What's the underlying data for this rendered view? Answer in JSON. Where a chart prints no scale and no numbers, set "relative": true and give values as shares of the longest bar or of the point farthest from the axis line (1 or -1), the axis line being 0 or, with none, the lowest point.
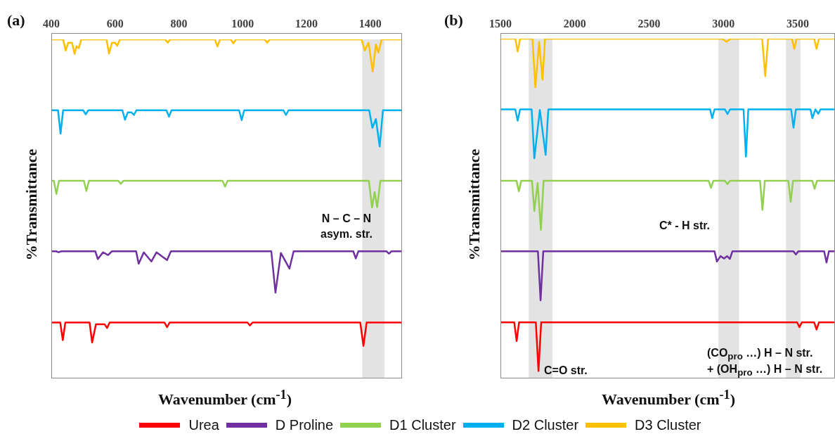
{
  "chart_data": [
    {
      "type": "line",
      "title": "(a)",
      "xlabel": "Wavenumber (cm$^{-1}$)",
      "ylabel": "%Transmittance",
      "relative": true,
      "xlim": [
        400,
        1500
      ],
      "xticks": [
        400,
        600,
        800,
        1000,
        1200,
        1400
      ],
      "grid": false,
      "legend": false,
      "marker": "none",
      "line_style": "solid",
      "bands": [
        {
          "axis": "x",
          "from": 1375,
          "to": 1445,
          "color": "#d9d9d9"
        }
      ],
      "annotations": [
        "N – C – N\nasym. str."
      ],
      "series": [
        {
          "color": "#ff0000",
          "x": [
            400,
            428,
            436,
            444,
            520,
            528,
            540,
            567,
            575,
            583,
            755,
            763,
            771,
            1015,
            1023,
            1031,
            1369,
            1379,
            1389,
            1500
          ],
          "values": [
            0.165,
            0.165,
            0.113,
            0.165,
            0.165,
            0.106,
            0.16,
            0.16,
            0.149,
            0.165,
            0.165,
            0.151,
            0.165,
            0.165,
            0.156,
            0.165,
            0.165,
            0.096,
            0.165,
            0.165
          ]
        },
        {
          "color": "#7030a0",
          "x": [
            400,
            415,
            423,
            431,
            538,
            546,
            562,
            578,
            590,
            666,
            674,
            690,
            714,
            730,
            763,
            775,
            1090,
            1103,
            1120,
            1147,
            1160,
            1347,
            1355,
            1363,
            1451,
            1459,
            1467,
            1500
          ],
          "values": [
            0.375,
            0.375,
            0.372,
            0.375,
            0.375,
            0.352,
            0.372,
            0.364,
            0.375,
            0.375,
            0.338,
            0.372,
            0.345,
            0.372,
            0.349,
            0.375,
            0.375,
            0.253,
            0.37,
            0.324,
            0.375,
            0.375,
            0.354,
            0.375,
            0.375,
            0.368,
            0.375,
            0.375
          ]
        },
        {
          "color": "#92d050",
          "x": [
            400,
            408,
            416,
            424,
            502,
            510,
            518,
            610,
            618,
            626,
            937,
            945,
            953,
            1396,
            1406,
            1414,
            1422,
            1432,
            1500
          ],
          "values": [
            0.583,
            0.583,
            0.544,
            0.583,
            0.583,
            0.553,
            0.583,
            0.583,
            0.574,
            0.583,
            0.583,
            0.566,
            0.583,
            0.583,
            0.504,
            0.55,
            0.505,
            0.583,
            0.583
          ]
        },
        {
          "color": "#00b0f0",
          "x": [
            400,
            421,
            429,
            437,
            500,
            508,
            516,
            623,
            631,
            640,
            651,
            659,
            667,
            761,
            769,
            777,
            989,
            997,
            1005,
            1128,
            1136,
            1144,
            1397,
            1407,
            1418,
            1430,
            1440,
            1500
          ],
          "values": [
            0.791,
            0.791,
            0.722,
            0.791,
            0.791,
            0.779,
            0.791,
            0.791,
            0.763,
            0.785,
            0.785,
            0.777,
            0.791,
            0.791,
            0.772,
            0.791,
            0.791,
            0.762,
            0.791,
            0.791,
            0.777,
            0.791,
            0.791,
            0.739,
            0.765,
            0.684,
            0.791,
            0.791
          ]
        },
        {
          "color": "#ffc000",
          "x": [
            400,
            437,
            445,
            453,
            465,
            473,
            479,
            486,
            494,
            573,
            581,
            590,
            600,
            607,
            615,
            757,
            765,
            773,
            913,
            921,
            929,
            963,
            971,
            979,
            1069,
            1077,
            1085,
            1373,
            1383,
            1395,
            1408,
            1418,
            1426,
            1436,
            1500
          ],
          "values": [
            1,
            1,
            0.967,
            0.99,
            0.99,
            0.957,
            0.98,
            0.974,
            1,
            1,
            0.958,
            0.99,
            0.99,
            0.981,
            1,
            1,
            0.99,
            1,
            1,
            0.979,
            1,
            1,
            0.988,
            1,
            1,
            0.99,
            1,
            1,
            0.967,
            0.99,
            0.905,
            0.985,
            0.961,
            1,
            1
          ]
        }
      ]
    },
    {
      "type": "line",
      "title": "(b)",
      "xlabel": "Wavenumber (cm$^{-1}$)",
      "ylabel": "%Transmittance",
      "relative": true,
      "xlim": [
        1500,
        3750
      ],
      "xticks": [
        1500,
        2000,
        2500,
        3000,
        3500
      ],
      "grid": false,
      "legend": "bottom",
      "marker": "none",
      "line_style": "solid",
      "bands": [
        {
          "axis": "x",
          "from": 1690,
          "to": 1850,
          "color": "#d9d9d9"
        },
        {
          "axis": "x",
          "from": 2965,
          "to": 3105,
          "color": "#d9d9d9"
        },
        {
          "axis": "x",
          "from": 3420,
          "to": 3518,
          "color": "#d9d9d9"
        }
      ],
      "annotations": [
        "C* - H str.",
        "C=O str.",
        "(CO$_{pro}$ …) H – N str.",
        "+ (OH$_{pro}$ …) H – N str."
      ],
      "series": [
        {
          "name": "Urea",
          "color": "#ff0000",
          "x": [
            1500,
            1593,
            1609,
            1625,
            1738,
            1756,
            1774,
            3495,
            3511,
            3527,
            3610,
            3626,
            3642,
            3750
          ],
          "values": [
            0.165,
            0.165,
            0.11,
            0.165,
            0.165,
            0.022,
            0.165,
            0.165,
            0.151,
            0.165,
            0.165,
            0.144,
            0.165,
            0.165
          ]
        },
        {
          "name": "D Proline",
          "color": "#7030a0",
          "x": [
            1500,
            1752,
            1770,
            1788,
            2940,
            2956,
            2980,
            3004,
            3024,
            3043,
            3060,
            3471,
            3487,
            3503,
            3677,
            3693,
            3709,
            3750
          ],
          "values": [
            0.374,
            0.374,
            0.23,
            0.374,
            0.374,
            0.344,
            0.36,
            0.353,
            0.36,
            0.352,
            0.374,
            0.374,
            0.365,
            0.374,
            0.374,
            0.341,
            0.374,
            0.374
          ]
        },
        {
          "name": "D1 Cluster",
          "color": "#92d050",
          "x": [
            1500,
            1608,
            1624,
            1640,
            1712,
            1728,
            1750,
            1772,
            1790,
            2900,
            2916,
            2932,
            3010,
            3027,
            3044,
            3246,
            3262,
            3278,
            3436,
            3452,
            3468,
            3597,
            3613,
            3629,
            3750
          ],
          "values": [
            0.582,
            0.582,
            0.551,
            0.582,
            0.582,
            0.493,
            0.575,
            0.437,
            0.582,
            0.582,
            0.561,
            0.582,
            0.582,
            0.572,
            0.582,
            0.582,
            0.496,
            0.582,
            0.582,
            0.52,
            0.582,
            0.582,
            0.558,
            0.582,
            0.582
          ]
        },
        {
          "name": "D2 Cluster",
          "color": "#00b0f0",
          "x": [
            1500,
            1600,
            1616,
            1632,
            1710,
            1728,
            1765,
            1804,
            1822,
            2910,
            2924,
            2940,
            3010,
            3027,
            3044,
            3135,
            3151,
            3167,
            3455,
            3471,
            3487,
            3585,
            3598,
            3618,
            3638,
            3652,
            3750
          ],
          "values": [
            0.792,
            0.792,
            0.759,
            0.792,
            0.792,
            0.648,
            0.79,
            0.658,
            0.792,
            0.792,
            0.766,
            0.792,
            0.792,
            0.778,
            0.792,
            0.792,
            0.653,
            0.792,
            0.792,
            0.738,
            0.792,
            0.792,
            0.766,
            0.792,
            0.779,
            0.792,
            0.792
          ]
        },
        {
          "name": "D3 Cluster",
          "color": "#ffc000",
          "x": [
            1500,
            1600,
            1616,
            1632,
            1715,
            1735,
            1760,
            1783,
            1800,
            2990,
            3019,
            3050,
            3260,
            3281,
            3300,
            3460,
            3476,
            3492,
            3610,
            3626,
            3642,
            3750
          ],
          "values": [
            1,
            1,
            0.962,
            1,
            1,
            0.857,
            0.99,
            0.879,
            1,
            1,
            0.991,
            1,
            1,
            0.89,
            1,
            1,
            0.97,
            1,
            1,
            0.97,
            1,
            1
          ]
        }
      ]
    }
  ]
}
